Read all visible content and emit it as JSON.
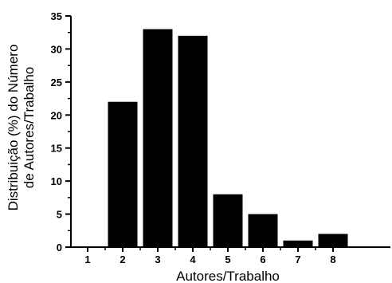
{
  "chart_data": {
    "type": "bar",
    "categories": [
      "1",
      "2",
      "3",
      "4",
      "5",
      "6",
      "7",
      "8"
    ],
    "values": [
      0,
      22,
      33,
      32,
      8,
      5,
      1,
      2
    ],
    "title": "",
    "xlabel": "Autores/Trabalho",
    "ylabel_lines": [
      "Distribuição (%) do Número",
      "de Autores/Trabalho"
    ],
    "ylim": [
      0,
      35
    ],
    "yticks": [
      "0",
      "5",
      "10",
      "15",
      "20",
      "25",
      "30",
      "35"
    ],
    "grid": false,
    "bar_color": "#000000"
  }
}
